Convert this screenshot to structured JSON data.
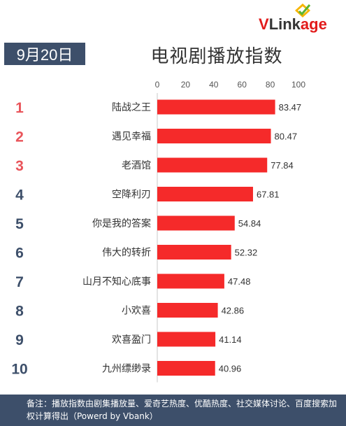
{
  "header": {
    "date": "9月20日",
    "title": "电视剧播放指数",
    "logo": {
      "prefix": "V",
      "middle": "Link",
      "suffix": "age"
    }
  },
  "chart_data": {
    "type": "bar",
    "orientation": "horizontal",
    "title": "电视剧播放指数",
    "ranks": [
      "1",
      "2",
      "3",
      "4",
      "5",
      "6",
      "7",
      "8",
      "9",
      "10"
    ],
    "categories": [
      "陆战之王",
      "遇见幸福",
      "老酒馆",
      "空降利刃",
      "你是我的答案",
      "伟大的转折",
      "山月不知心底事",
      "小欢喜",
      "欢喜盈门",
      "九州缥缈录"
    ],
    "values": [
      83.47,
      80.47,
      77.84,
      67.81,
      54.84,
      52.32,
      47.48,
      42.86,
      41.14,
      40.96
    ],
    "value_labels": [
      "83.47",
      "80.47",
      "77.84",
      "67.81",
      "54.84",
      "52.32",
      "47.48",
      "42.86",
      "41.14",
      "40.96"
    ],
    "xlim": [
      0,
      100
    ],
    "xticks": [
      "0",
      "20",
      "40",
      "60",
      "80",
      "100"
    ],
    "xtick_values": [
      0,
      20,
      40,
      60,
      80,
      100
    ],
    "grid": false,
    "bar_color": "#f52a2a",
    "top_rank_color": "#e9545a",
    "rank_color": "#3d4f6a"
  },
  "footer": {
    "note": "备注：播放指数由剧集播放量、爱奇艺热度、优酷热度、社交媒体讨论、百度搜索加权计算得出（Powerd by Vbank）"
  }
}
